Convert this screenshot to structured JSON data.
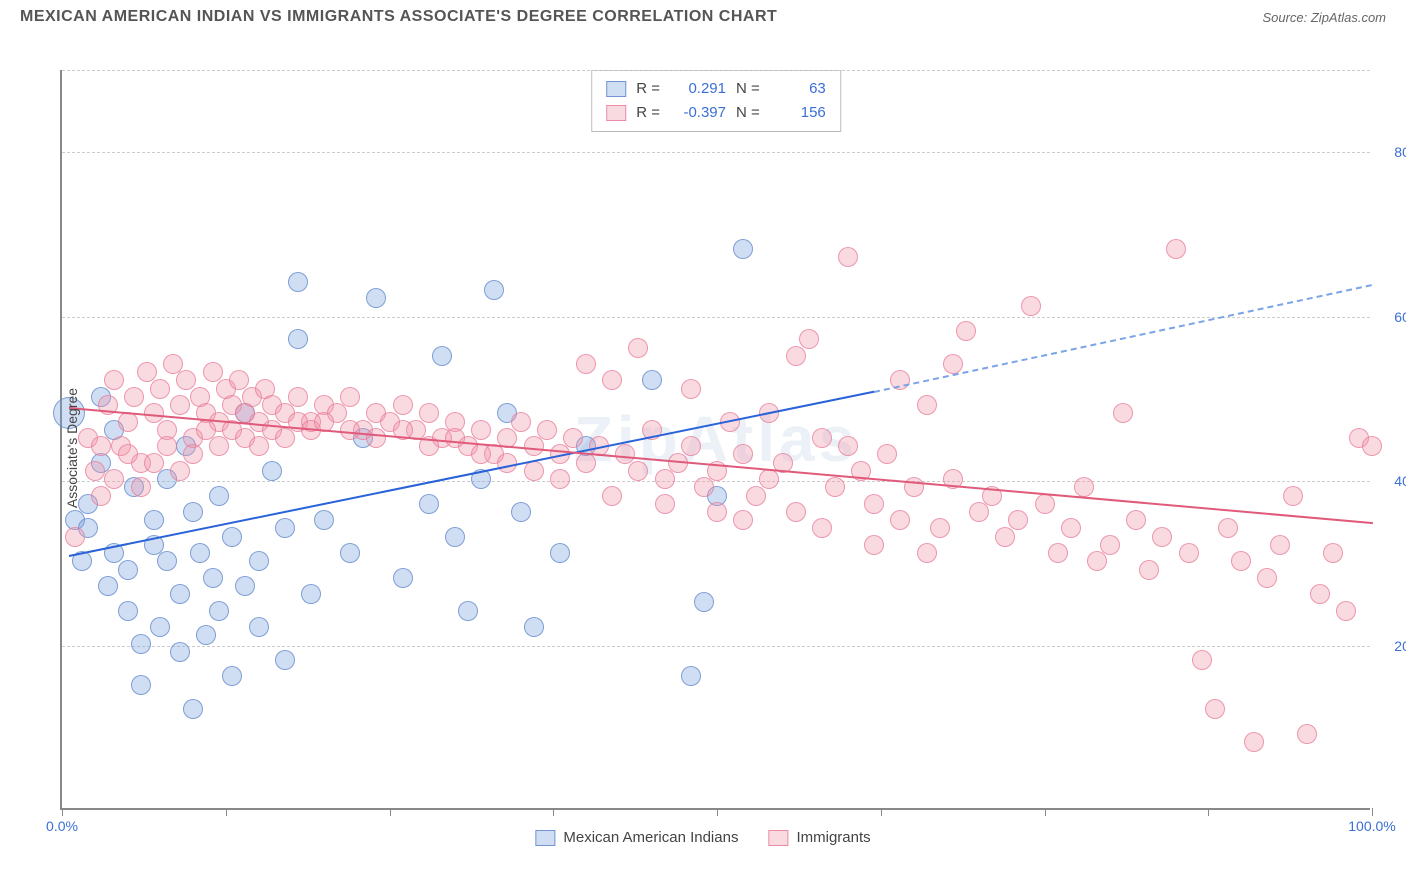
{
  "title": "MEXICAN AMERICAN INDIAN VS IMMIGRANTS ASSOCIATE'S DEGREE CORRELATION CHART",
  "source": "Source: ZipAtlas.com",
  "watermark": "ZipAtlas",
  "chart": {
    "type": "scatter",
    "xlim": [
      0,
      100
    ],
    "ylim": [
      0,
      90
    ],
    "xtick_positions": [
      0,
      12.5,
      25,
      37.5,
      50,
      62.5,
      75,
      87.5,
      100
    ],
    "xtick_labels_shown": {
      "0": "0.0%",
      "100": "100.0%"
    },
    "ytick_positions": [
      20,
      40,
      60,
      80
    ],
    "ytick_labels": [
      "20.0%",
      "40.0%",
      "60.0%",
      "80.0%"
    ],
    "ylabel": "Associate's Degree",
    "grid_color": "#cccccc",
    "axis_color": "#888888",
    "background_color": "#ffffff",
    "marker_radius": 10,
    "marker_radius_large": 16,
    "series": [
      {
        "name": "Mexican American Indians",
        "color_fill": "rgba(120,160,220,0.35)",
        "color_stroke": "rgba(90,130,200,0.7)",
        "regression": {
          "x1": 0.5,
          "y1": 31,
          "x2_solid": 62,
          "y2_solid": 51,
          "x2_dash": 100,
          "y2_dash": 64,
          "color": "#2962d9"
        },
        "stats": {
          "R": "0.291",
          "N": "63"
        },
        "points": [
          [
            0.5,
            48,
            16
          ],
          [
            1,
            35
          ],
          [
            1.5,
            30
          ],
          [
            2,
            34
          ],
          [
            2,
            37
          ],
          [
            3,
            42
          ],
          [
            3,
            50
          ],
          [
            3.5,
            27
          ],
          [
            4,
            31
          ],
          [
            4,
            46
          ],
          [
            5,
            29
          ],
          [
            5,
            24
          ],
          [
            5.5,
            39
          ],
          [
            6,
            20
          ],
          [
            6,
            15
          ],
          [
            7,
            32
          ],
          [
            7,
            35
          ],
          [
            7.5,
            22
          ],
          [
            8,
            30
          ],
          [
            8,
            40
          ],
          [
            9,
            26
          ],
          [
            9,
            19
          ],
          [
            9.5,
            44
          ],
          [
            10,
            36
          ],
          [
            10,
            12
          ],
          [
            10.5,
            31
          ],
          [
            11,
            21
          ],
          [
            11.5,
            28
          ],
          [
            12,
            38
          ],
          [
            12,
            24
          ],
          [
            13,
            33
          ],
          [
            13,
            16
          ],
          [
            14,
            27
          ],
          [
            14,
            48
          ],
          [
            15,
            30
          ],
          [
            15,
            22
          ],
          [
            16,
            41
          ],
          [
            17,
            34
          ],
          [
            17,
            18
          ],
          [
            18,
            57
          ],
          [
            18,
            64
          ],
          [
            19,
            26
          ],
          [
            20,
            35
          ],
          [
            22,
            31
          ],
          [
            23,
            45
          ],
          [
            24,
            62
          ],
          [
            26,
            28
          ],
          [
            28,
            37
          ],
          [
            29,
            55
          ],
          [
            30,
            33
          ],
          [
            31,
            24
          ],
          [
            32,
            40
          ],
          [
            33,
            63
          ],
          [
            34,
            48
          ],
          [
            35,
            36
          ],
          [
            36,
            22
          ],
          [
            38,
            31
          ],
          [
            40,
            44
          ],
          [
            45,
            52
          ],
          [
            48,
            16
          ],
          [
            49,
            25
          ],
          [
            50,
            38
          ],
          [
            52,
            68
          ]
        ]
      },
      {
        "name": "Immigrants",
        "color_fill": "rgba(240,150,170,0.35)",
        "color_stroke": "rgba(230,120,150,0.7)",
        "regression": {
          "x1": 0.5,
          "y1": 49,
          "x2_solid": 100,
          "y2_solid": 35,
          "color": "#e05a7a"
        },
        "stats": {
          "R": "-0.397",
          "N": "156"
        },
        "points": [
          [
            1,
            33
          ],
          [
            2,
            45
          ],
          [
            2.5,
            41
          ],
          [
            3,
            38
          ],
          [
            3.5,
            49
          ],
          [
            4,
            52
          ],
          [
            4.5,
            44
          ],
          [
            5,
            47
          ],
          [
            5.5,
            50
          ],
          [
            6,
            42
          ],
          [
            6.5,
            53
          ],
          [
            7,
            48
          ],
          [
            7.5,
            51
          ],
          [
            8,
            46
          ],
          [
            8.5,
            54
          ],
          [
            9,
            49
          ],
          [
            9.5,
            52
          ],
          [
            10,
            45
          ],
          [
            10.5,
            50
          ],
          [
            11,
            48
          ],
          [
            11.5,
            53
          ],
          [
            12,
            47
          ],
          [
            12.5,
            51
          ],
          [
            13,
            49
          ],
          [
            13.5,
            52
          ],
          [
            14,
            48
          ],
          [
            14.5,
            50
          ],
          [
            15,
            47
          ],
          [
            15.5,
            51
          ],
          [
            16,
            49
          ],
          [
            17,
            48
          ],
          [
            18,
            50
          ],
          [
            19,
            47
          ],
          [
            20,
            49
          ],
          [
            21,
            48
          ],
          [
            22,
            50
          ],
          [
            23,
            46
          ],
          [
            24,
            48
          ],
          [
            25,
            47
          ],
          [
            26,
            49
          ],
          [
            27,
            46
          ],
          [
            28,
            48
          ],
          [
            29,
            45
          ],
          [
            30,
            47
          ],
          [
            31,
            44
          ],
          [
            32,
            46
          ],
          [
            33,
            43
          ],
          [
            34,
            45
          ],
          [
            35,
            47
          ],
          [
            36,
            44
          ],
          [
            37,
            46
          ],
          [
            38,
            43
          ],
          [
            39,
            45
          ],
          [
            40,
            42
          ],
          [
            41,
            44
          ],
          [
            42,
            52
          ],
          [
            43,
            43
          ],
          [
            44,
            41
          ],
          [
            45,
            46
          ],
          [
            46,
            40
          ],
          [
            47,
            42
          ],
          [
            48,
            44
          ],
          [
            49,
            39
          ],
          [
            50,
            41
          ],
          [
            51,
            47
          ],
          [
            52,
            43
          ],
          [
            53,
            38
          ],
          [
            54,
            40
          ],
          [
            55,
            42
          ],
          [
            56,
            36
          ],
          [
            57,
            57
          ],
          [
            58,
            45
          ],
          [
            59,
            39
          ],
          [
            60,
            67
          ],
          [
            61,
            41
          ],
          [
            62,
            37
          ],
          [
            63,
            43
          ],
          [
            64,
            35
          ],
          [
            65,
            39
          ],
          [
            66,
            49
          ],
          [
            67,
            34
          ],
          [
            68,
            40
          ],
          [
            69,
            58
          ],
          [
            70,
            36
          ],
          [
            71,
            38
          ],
          [
            72,
            33
          ],
          [
            73,
            35
          ],
          [
            74,
            61
          ],
          [
            75,
            37
          ],
          [
            76,
            31
          ],
          [
            77,
            34
          ],
          [
            78,
            39
          ],
          [
            79,
            30
          ],
          [
            80,
            32
          ],
          [
            81,
            48
          ],
          [
            82,
            35
          ],
          [
            83,
            29
          ],
          [
            84,
            33
          ],
          [
            85,
            68
          ],
          [
            86,
            31
          ],
          [
            87,
            18
          ],
          [
            88,
            12
          ],
          [
            89,
            34
          ],
          [
            90,
            30
          ],
          [
            91,
            8
          ],
          [
            92,
            28
          ],
          [
            93,
            32
          ],
          [
            94,
            38
          ],
          [
            95,
            9
          ],
          [
            96,
            26
          ],
          [
            97,
            31
          ],
          [
            98,
            24
          ],
          [
            99,
            45
          ],
          [
            100,
            44
          ],
          [
            3,
            44
          ],
          [
            4,
            40
          ],
          [
            5,
            43
          ],
          [
            6,
            39
          ],
          [
            7,
            42
          ],
          [
            8,
            44
          ],
          [
            9,
            41
          ],
          [
            10,
            43
          ],
          [
            11,
            46
          ],
          [
            12,
            44
          ],
          [
            13,
            46
          ],
          [
            14,
            45
          ],
          [
            15,
            44
          ],
          [
            16,
            46
          ],
          [
            17,
            45
          ],
          [
            18,
            47
          ],
          [
            19,
            46
          ],
          [
            20,
            47
          ],
          [
            22,
            46
          ],
          [
            24,
            45
          ],
          [
            26,
            46
          ],
          [
            28,
            44
          ],
          [
            30,
            45
          ],
          [
            32,
            43
          ],
          [
            34,
            42
          ],
          [
            36,
            41
          ],
          [
            38,
            40
          ],
          [
            40,
            54
          ],
          [
            42,
            38
          ],
          [
            44,
            56
          ],
          [
            46,
            37
          ],
          [
            48,
            51
          ],
          [
            50,
            36
          ],
          [
            52,
            35
          ],
          [
            54,
            48
          ],
          [
            56,
            55
          ],
          [
            58,
            34
          ],
          [
            60,
            44
          ],
          [
            62,
            32
          ],
          [
            64,
            52
          ],
          [
            66,
            31
          ],
          [
            68,
            54
          ]
        ]
      }
    ]
  },
  "legend": {
    "items": [
      {
        "label": "Mexican American Indians",
        "swatch_class": "sw-a"
      },
      {
        "label": "Immigrants",
        "swatch_class": "sw-b"
      }
    ]
  }
}
